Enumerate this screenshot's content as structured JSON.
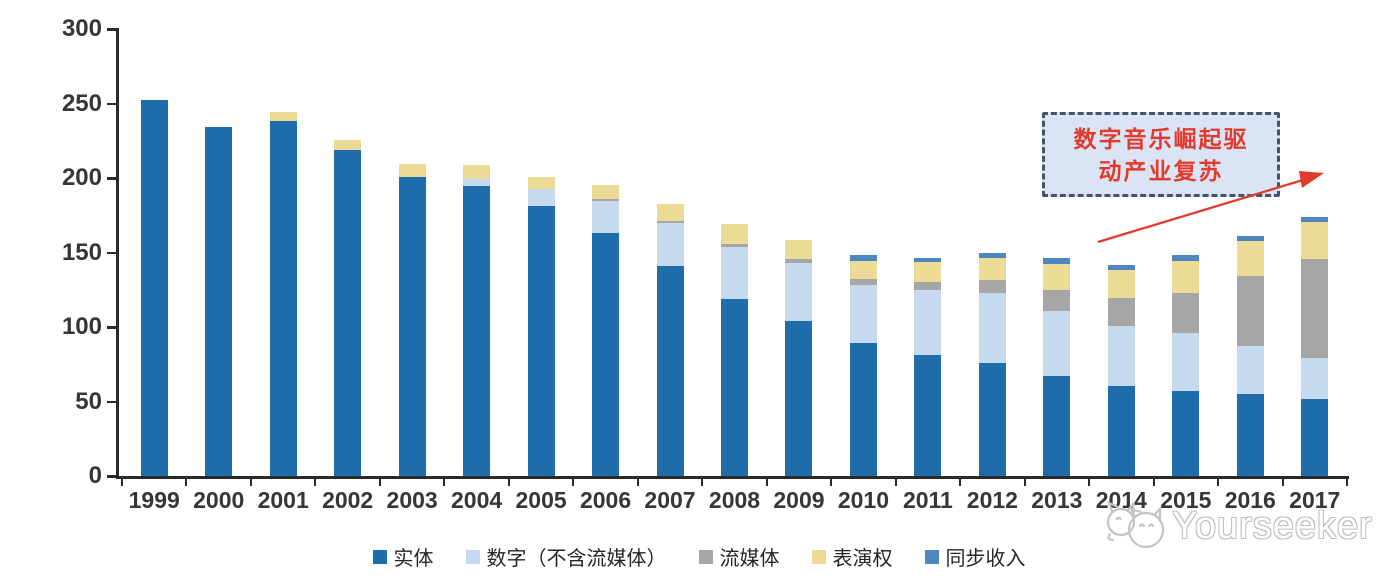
{
  "chart_data": {
    "type": "bar",
    "stacked": true,
    "title": "",
    "xlabel": "",
    "ylabel": "",
    "ylim": [
      0,
      300
    ],
    "yticks": [
      0,
      50,
      100,
      150,
      200,
      250,
      300
    ],
    "grid": false,
    "legend_position": "bottom",
    "categories": [
      "1999",
      "2000",
      "2001",
      "2002",
      "2003",
      "2004",
      "2005",
      "2006",
      "2007",
      "2008",
      "2009",
      "2010",
      "2011",
      "2012",
      "2013",
      "2014",
      "2015",
      "2016",
      "2017"
    ],
    "series": [
      {
        "name": "实体",
        "color": "#1F6DAB",
        "values": [
          252.5,
          234.5,
          238.5,
          219,
          201,
          194.5,
          181.5,
          163,
          141,
          119,
          104,
          89,
          81.5,
          76,
          67,
          60.5,
          57,
          55,
          52
        ]
      },
      {
        "name": "数字（不含流媒体）",
        "color": "#C5D9EF",
        "values": [
          0,
          0,
          0,
          0,
          0,
          4.5,
          11,
          21.5,
          29,
          34.5,
          39,
          39.5,
          43.5,
          47,
          43.5,
          40.5,
          39,
          32.5,
          27.5
        ]
      },
      {
        "name": "流媒体",
        "color": "#A6A6A6",
        "values": [
          0,
          0,
          0,
          0,
          0,
          0,
          0,
          1.5,
          1,
          2,
          2.5,
          4,
          5,
          8.5,
          14,
          18.5,
          27,
          47,
          66
        ]
      },
      {
        "name": "表演权",
        "color": "#EBDB96",
        "values": [
          0,
          0,
          5.5,
          6.5,
          8.5,
          9.5,
          8.5,
          9,
          11.5,
          13.5,
          13,
          12,
          13.5,
          14.5,
          17.5,
          19,
          21.5,
          23.5,
          25
        ]
      },
      {
        "name": "同步收入",
        "color": "#4E86C0",
        "values": [
          0,
          0,
          0,
          0,
          0,
          0,
          0,
          0,
          0,
          0,
          0,
          4,
          3,
          3.5,
          4,
          3,
          3.5,
          3,
          3
        ]
      }
    ]
  },
  "annotation": {
    "line1": "数字音乐崛起驱",
    "line2": "动产业复苏",
    "text_color": "#E23B2E",
    "border_color": "#44546A",
    "fill_color": "#DAE4F4",
    "arrow_color": "#E23B2E"
  },
  "watermark": {
    "text": "Yourseeker",
    "color": "#bfbfbf",
    "logo": "mascot-faces-icon"
  }
}
